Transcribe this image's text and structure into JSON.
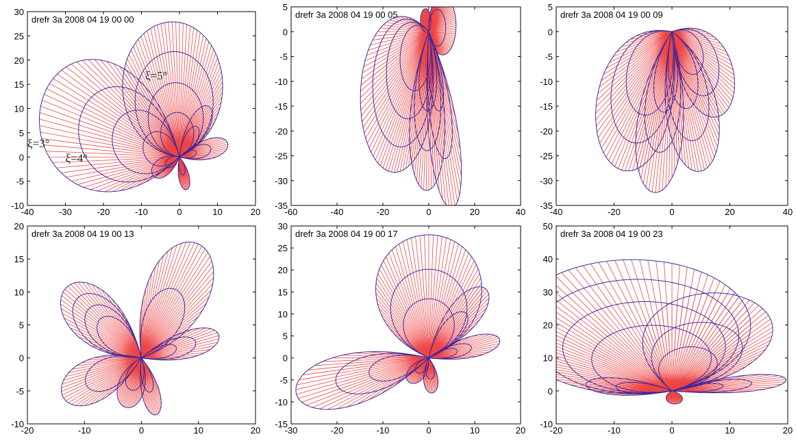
{
  "colors": {
    "spoke": "#ee4444",
    "contour": "#3a2aa0",
    "axis": "#000000"
  },
  "chart_data": [
    {
      "type": "line",
      "title": "drefr 3a 2008 04 19 00 00",
      "xlim": [
        -40,
        20
      ],
      "ylim": [
        -10,
        30
      ],
      "xticks": [
        -40,
        -30,
        -20,
        -10,
        0,
        10,
        20
      ],
      "yticks": [
        -10,
        -5,
        0,
        5,
        10,
        15,
        20,
        25,
        30
      ],
      "xtick_labels": [
        "-40",
        "-30",
        "-20",
        "-10",
        "0",
        "10",
        "20"
      ],
      "ytick_labels": [
        "-10",
        "-5",
        "0",
        "5",
        "10",
        "15",
        "20",
        "25",
        "30"
      ],
      "annotations": [
        {
          "text": "ξ=5°",
          "x": -9,
          "y": 16
        },
        {
          "text": "ξ=3°",
          "x": -40,
          "y": 2
        },
        {
          "text": "ξ=4°",
          "x": -30,
          "y": -1
        }
      ],
      "lobes": [
        {
          "angle": 97,
          "length": 28,
          "width": 0.42,
          "rings": [
            1,
            0.78,
            0.55,
            0.33
          ]
        },
        {
          "angle": 163,
          "length": 38,
          "width": 0.3,
          "rings": [
            1,
            0.72,
            0.48,
            0.26
          ]
        },
        {
          "angle": 12,
          "length": 13,
          "width": 0.13,
          "rings": [
            1,
            0.65,
            0.35
          ]
        },
        {
          "angle": 52,
          "length": 13,
          "width": 0.16,
          "rings": [
            1,
            0.6
          ]
        },
        {
          "angle": -74,
          "length": 7,
          "width": 0.16,
          "rings": [
            1,
            0.55
          ]
        },
        {
          "angle": 206,
          "length": 8,
          "width": 0.2,
          "rings": [
            1,
            0.5
          ]
        }
      ]
    },
    {
      "type": "line",
      "title": "drefr 3a 2008 04 19 00 05",
      "xlim": [
        -60,
        40
      ],
      "ylim": [
        -35,
        5
      ],
      "xticks": [
        -60,
        -40,
        -20,
        0,
        20,
        40
      ],
      "yticks": [
        -35,
        -30,
        -25,
        -20,
        -15,
        -10,
        -5,
        0,
        5
      ],
      "xtick_labels": [
        "-60",
        "-40",
        "-20",
        "0",
        "20",
        "40"
      ],
      "ytick_labels": [
        "-35",
        "-30",
        "-25",
        "-20",
        "-15",
        "-10",
        "-5",
        "0",
        "5"
      ],
      "annotations": [],
      "lobes": [
        {
          "angle": 222,
          "length": 35,
          "width": 0.38,
          "rings": [
            1,
            0.82,
            0.62,
            0.42
          ]
        },
        {
          "angle": 268,
          "length": 32,
          "width": 0.2,
          "rings": [
            1,
            0.75,
            0.5
          ]
        },
        {
          "angle": 287,
          "length": 37,
          "width": 0.14,
          "rings": [
            1,
            0.72,
            0.45
          ]
        },
        {
          "angle": 12,
          "length": 12,
          "width": 0.45,
          "rings": [
            1,
            0.62
          ]
        },
        {
          "angle": 120,
          "length": 5,
          "width": 0.4,
          "rings": [
            1
          ]
        }
      ]
    },
    {
      "type": "line",
      "title": "drefr 3a 2008 04 19 00 09",
      "xlim": [
        -40,
        40
      ],
      "ylim": [
        -35,
        5
      ],
      "xticks": [
        -40,
        -20,
        0,
        20,
        40
      ],
      "yticks": [
        -35,
        -30,
        -25,
        -20,
        -15,
        -10,
        -5,
        0,
        5
      ],
      "xtick_labels": [
        "-40",
        "-20",
        "0",
        "20",
        "40"
      ],
      "ytick_labels": [
        "-35",
        "-30",
        "-25",
        "-20",
        "-15",
        "-10",
        "-5",
        "0",
        "5"
      ],
      "annotations": [],
      "lobes": [
        {
          "angle": 228,
          "length": 34,
          "width": 0.3,
          "rings": [
            1,
            0.8,
            0.6
          ]
        },
        {
          "angle": 258,
          "length": 33,
          "width": 0.2,
          "rings": [
            1,
            0.75,
            0.5
          ]
        },
        {
          "angle": 293,
          "length": 30,
          "width": 0.24,
          "rings": [
            1,
            0.78,
            0.55
          ]
        },
        {
          "angle": 325,
          "length": 25,
          "width": 0.26,
          "rings": [
            1,
            0.75,
            0.5
          ]
        }
      ]
    },
    {
      "type": "line",
      "title": "drefr 3a 2008 04 19 00 13",
      "xlim": [
        -20,
        20
      ],
      "ylim": [
        -10,
        20
      ],
      "xticks": [
        -20,
        -10,
        0,
        10,
        20
      ],
      "yticks": [
        -10,
        -5,
        0,
        5,
        10,
        15,
        20
      ],
      "xtick_labels": [
        "-20",
        "-10",
        "0",
        "10",
        "20"
      ],
      "ytick_labels": [
        "-10",
        "-5",
        "0",
        "5",
        "10",
        "15",
        "20"
      ],
      "annotations": [],
      "lobes": [
        {
          "angle": 58,
          "length": 20,
          "width": 0.22,
          "rings": [
            1,
            0.6
          ]
        },
        {
          "angle": 143,
          "length": 17,
          "width": 0.2,
          "rings": [
            1,
            0.85,
            0.7,
            0.55
          ]
        },
        {
          "angle": 202,
          "length": 15,
          "width": 0.18,
          "rings": [
            1,
            0.7
          ]
        },
        {
          "angle": 248,
          "length": 8,
          "width": 0.24,
          "rings": [
            1,
            0.65
          ]
        },
        {
          "angle": 287,
          "length": 9,
          "width": 0.14,
          "rings": [
            1,
            0.6
          ]
        },
        {
          "angle": 14,
          "length": 14,
          "width": 0.12,
          "rings": [
            1,
            0.7,
            0.45
          ]
        }
      ]
    },
    {
      "type": "line",
      "title": "drefr 3a 2008 04 19 00 17",
      "xlim": [
        -30,
        20
      ],
      "ylim": [
        -15,
        30
      ],
      "xticks": [
        -30,
        -20,
        -10,
        0,
        10,
        20
      ],
      "yticks": [
        -15,
        -10,
        -5,
        0,
        5,
        10,
        15,
        20,
        25,
        30
      ],
      "xtick_labels": [
        "-30",
        "-20",
        "-10",
        "0",
        "10",
        "20"
      ],
      "ytick_labels": [
        "-15",
        "-10",
        "-5",
        "0",
        "5",
        "10",
        "15",
        "20",
        "25",
        "30"
      ],
      "annotations": [],
      "lobes": [
        {
          "angle": 90,
          "length": 28,
          "width": 0.36,
          "rings": [
            1,
            0.72,
            0.48
          ]
        },
        {
          "angle": 196,
          "length": 30,
          "width": 0.16,
          "rings": [
            1,
            0.7,
            0.45
          ]
        },
        {
          "angle": 52,
          "length": 20,
          "width": 0.14,
          "rings": [
            1,
            0.65
          ]
        },
        {
          "angle": 15,
          "length": 16,
          "width": 0.12,
          "rings": [
            1,
            0.6,
            0.4
          ]
        },
        {
          "angle": 275,
          "length": 8,
          "width": 0.16,
          "rings": [
            1,
            0.6
          ]
        },
        {
          "angle": 232,
          "length": 7,
          "width": 0.22,
          "rings": [
            1,
            0.6
          ]
        }
      ]
    },
    {
      "type": "line",
      "title": "drefr 3a 2008 04 19 00 23",
      "xlim": [
        -20,
        20
      ],
      "ylim": [
        -10,
        50
      ],
      "xticks": [
        -20,
        -10,
        0,
        10,
        20
      ],
      "yticks": [
        -10,
        0,
        10,
        20,
        30,
        40,
        50
      ],
      "xtick_labels": [
        "-20",
        "-10",
        "0",
        "10",
        "20"
      ],
      "ytick_labels": [
        "-10",
        "0",
        "10",
        "20",
        "30",
        "40",
        "50"
      ],
      "annotations": [],
      "lobes": [
        {
          "angle": 110,
          "length": 41,
          "width": 0.46,
          "rings": [
            1,
            0.85,
            0.68,
            0.5
          ]
        },
        {
          "angle": 70,
          "length": 31,
          "width": 0.3,
          "rings": [
            1,
            0.7,
            0.45
          ]
        },
        {
          "angle": 10,
          "length": 20,
          "width": 0.1,
          "rings": [
            1,
            0.7,
            0.45
          ]
        },
        {
          "angle": 172,
          "length": 15,
          "width": 0.14,
          "rings": [
            1,
            0.65
          ]
        },
        {
          "angle": 280,
          "length": 4,
          "width": 0.3,
          "rings": [
            1
          ]
        }
      ]
    }
  ]
}
